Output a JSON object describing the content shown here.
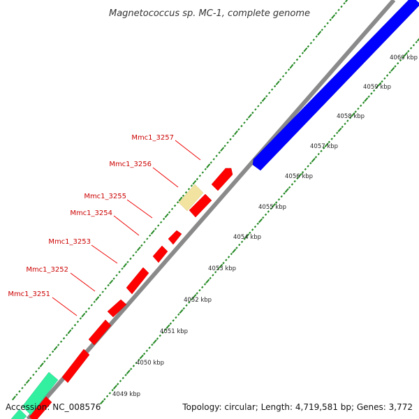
{
  "title": "Magnetococcus sp. MC-1, complete genome",
  "footer": {
    "accession": "Accession: NC_008576",
    "summary": "Topology: circular; Length: 4,719,581 bp; Genes: 3,772"
  },
  "colors": {
    "backbone": "#8a8a8a",
    "forward_gene": "#ff0000",
    "reverse_gene": "#0000ff",
    "highlight_gene": "#f2e3a0",
    "other_gene": "#33f0a0",
    "tick": "#228822",
    "label": "#cc0000"
  },
  "ticks": [
    {
      "label": "4049 kbp"
    },
    {
      "label": "4050 kbp"
    },
    {
      "label": "4051 kbp"
    },
    {
      "label": "4052 kbp"
    },
    {
      "label": "4053 kbp"
    },
    {
      "label": "4054 kbp"
    },
    {
      "label": "4055 kbp"
    },
    {
      "label": "4056 kbp"
    },
    {
      "label": "4057 kbp"
    },
    {
      "label": "4058 kbp"
    },
    {
      "label": "4059 kbp"
    },
    {
      "label": "4060 kbp"
    }
  ],
  "gene_labels": [
    {
      "name": "Mmc1_3251"
    },
    {
      "name": "Mmc1_3252"
    },
    {
      "name": "Mmc1_3253"
    },
    {
      "name": "Mmc1_3254"
    },
    {
      "name": "Mmc1_3255"
    },
    {
      "name": "Mmc1_3256"
    },
    {
      "name": "Mmc1_3257"
    }
  ]
}
